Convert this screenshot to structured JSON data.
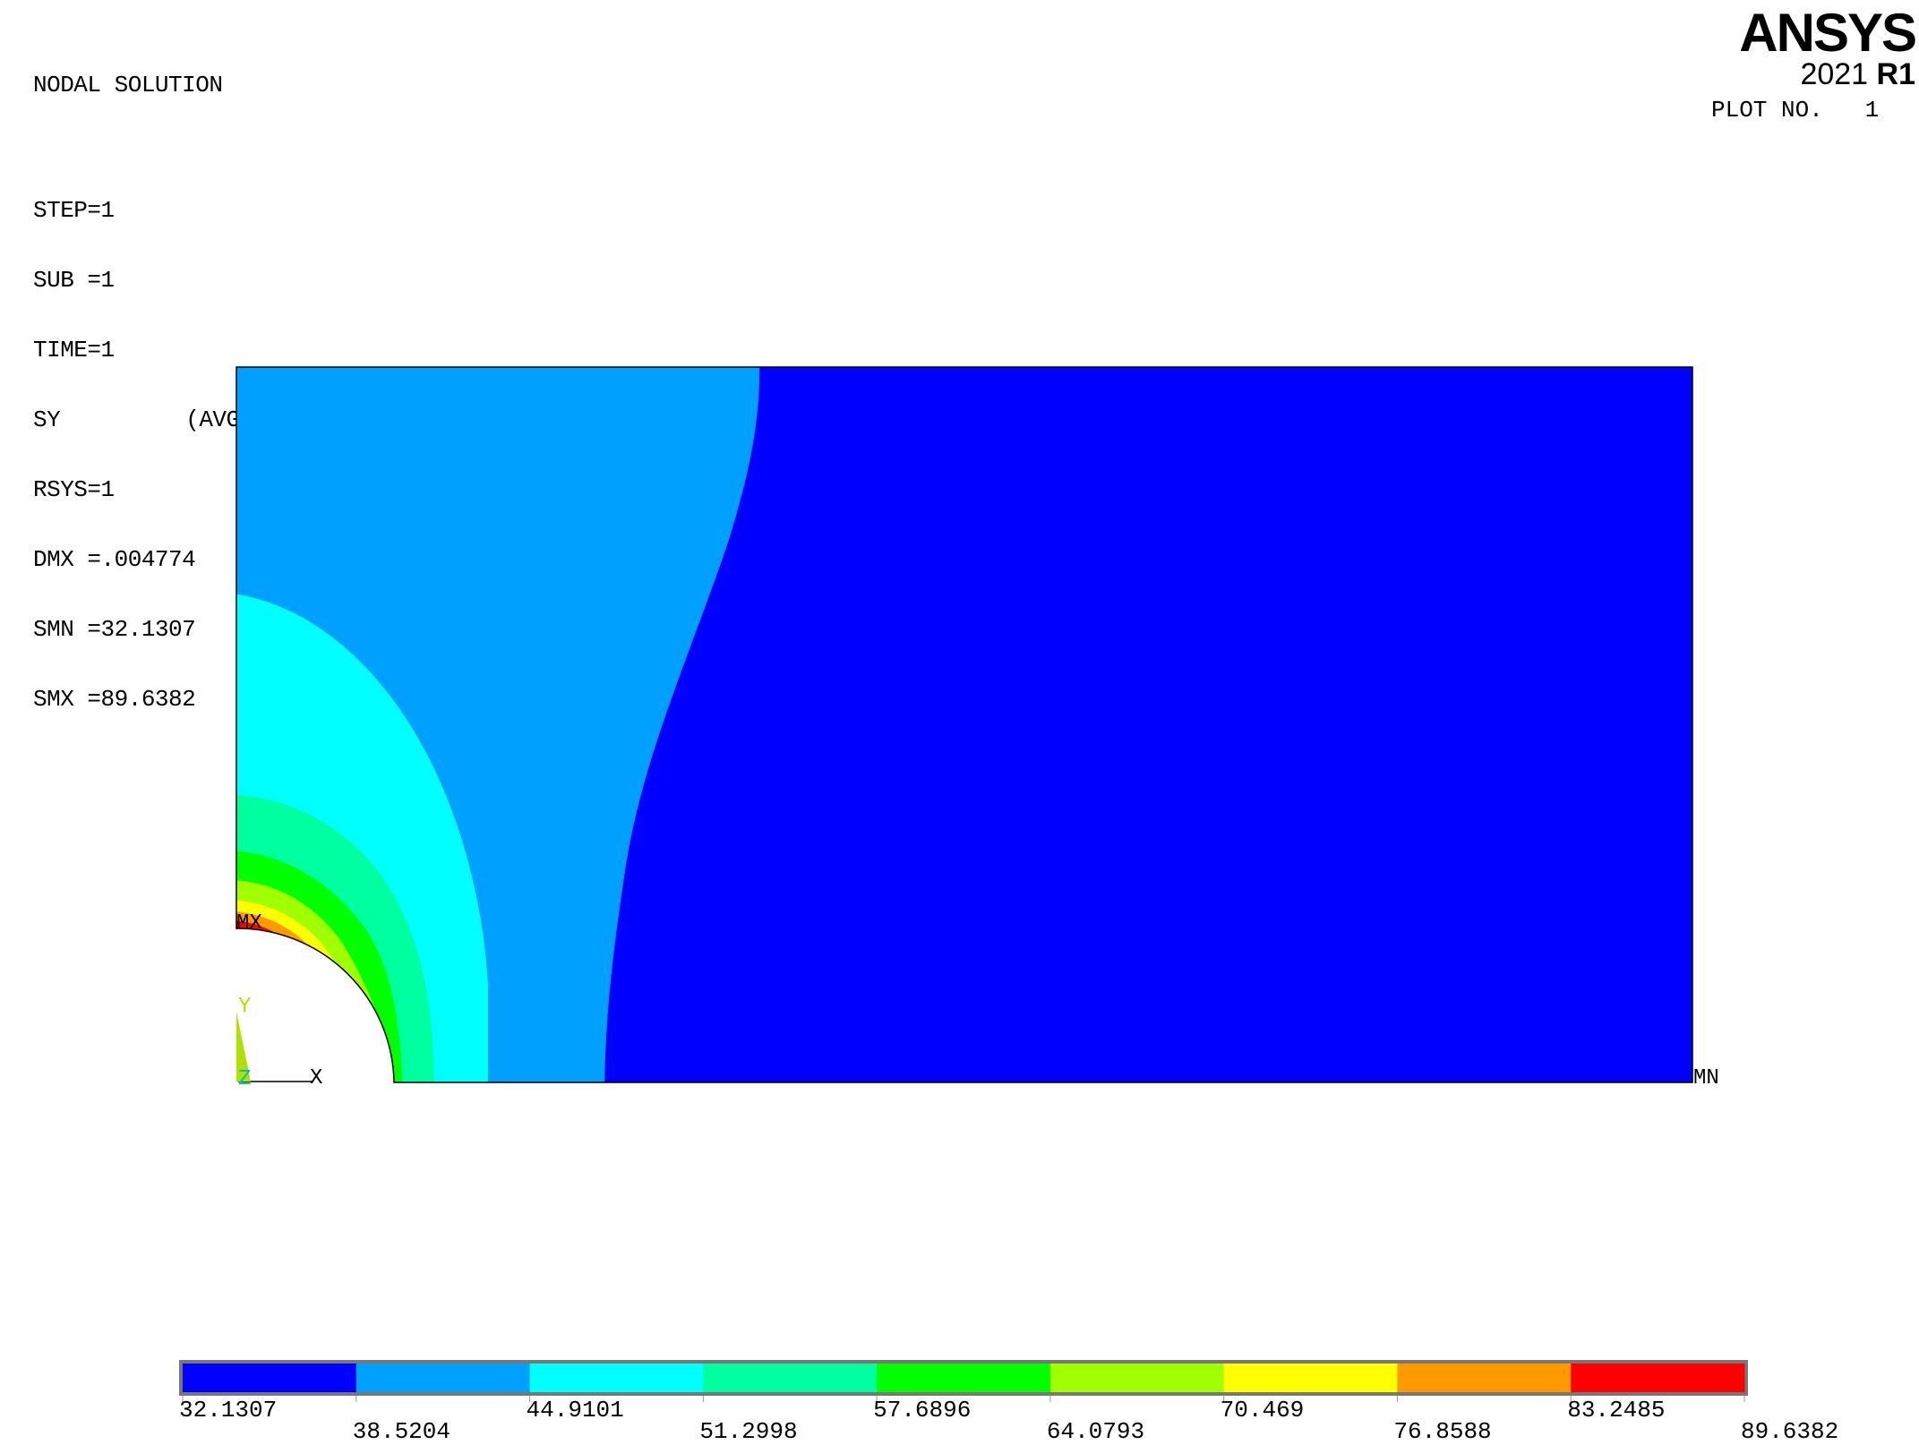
{
  "header": {
    "title": "NODAL SOLUTION",
    "step": "STEP=1",
    "sub": "SUB =1",
    "time": "TIME=1",
    "quantity": "SY",
    "averaging": "(AVG)",
    "rsys": "RSYS=1",
    "dmx": "DMX =.004774",
    "smn": "SMN =32.1307",
    "smx": "SMX =89.6382"
  },
  "logo": {
    "name": "ANSYS",
    "year": "2021",
    "release": "R1"
  },
  "plot_no": "PLOT NO.   1",
  "markers": {
    "max": "MX",
    "min": "MN"
  },
  "triad": {
    "x": "X",
    "y": "Y",
    "z": "Z"
  },
  "legend": {
    "labels": [
      "32.1307",
      "38.5204",
      "44.9101",
      "51.2998",
      "57.6896",
      "64.0793",
      "70.469",
      "76.8588",
      "83.2485",
      "89.6382"
    ],
    "colors": [
      "#0000ff",
      "#00a0ff",
      "#00ffff",
      "#00ff9f",
      "#00ff00",
      "#a0ff00",
      "#ffff00",
      "#ff9900",
      "#ff0000"
    ]
  },
  "colors": {
    "background": "#ffffff",
    "text": "#000000",
    "triad_y": "#b0e000",
    "triad_z": "#00c0c0"
  }
}
